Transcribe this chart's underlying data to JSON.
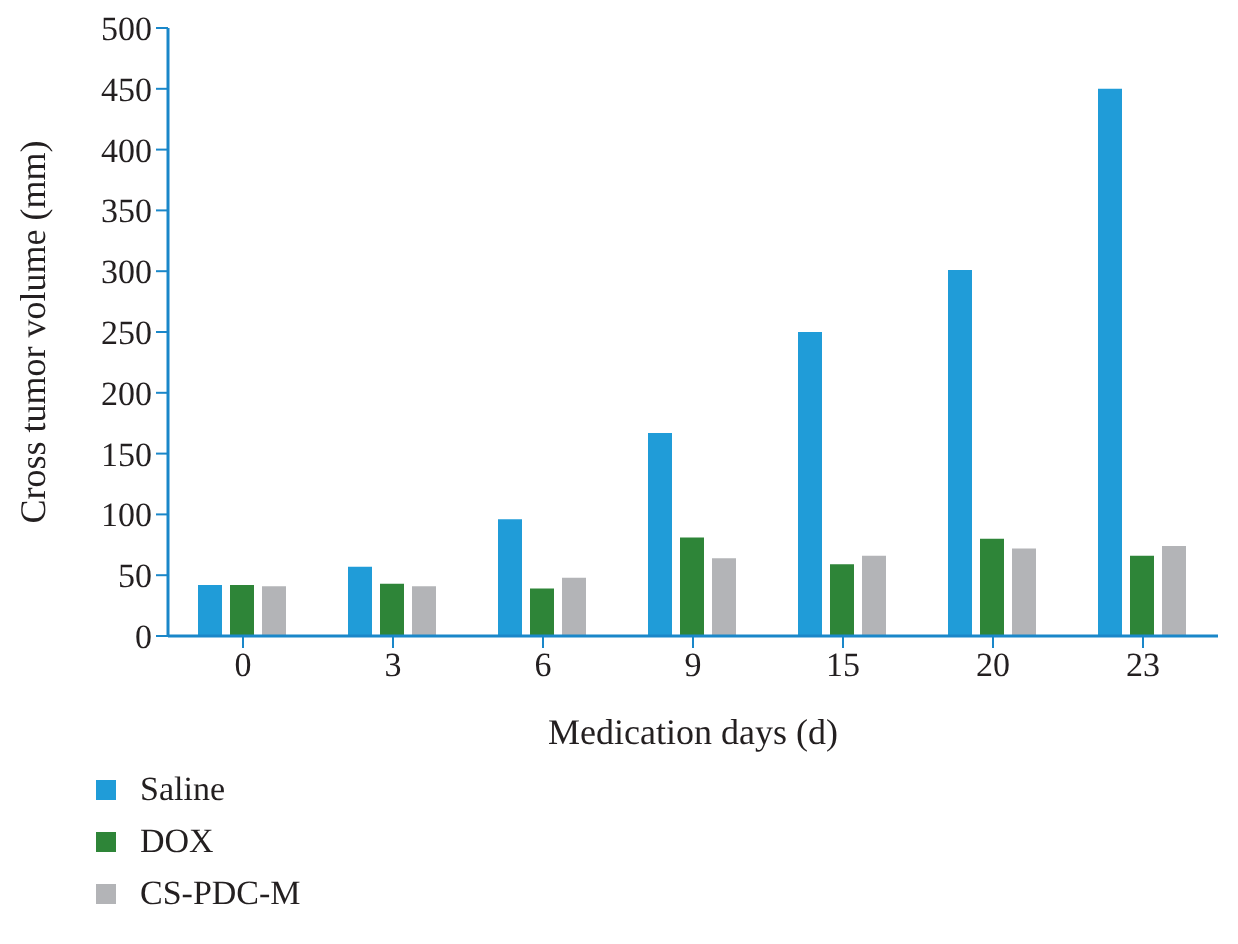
{
  "chart_data": {
    "type": "bar",
    "xlabel": "Medication days (d)",
    "ylabel": "Cross tumor volume (mm)",
    "categories": [
      "0",
      "3",
      "6",
      "9",
      "15",
      "20",
      "23"
    ],
    "series": [
      {
        "name": "Saline",
        "color": "#209cd8",
        "values": [
          42,
          57,
          96,
          167,
          250,
          301,
          450
        ]
      },
      {
        "name": "DOX",
        "color": "#2e8538",
        "values": [
          42,
          43,
          39,
          81,
          59,
          80,
          66
        ]
      },
      {
        "name": "CS-PDC-M",
        "color": "#b3b4b7",
        "values": [
          41,
          41,
          48,
          64,
          66,
          72,
          74
        ]
      }
    ],
    "ylim": [
      0,
      500
    ],
    "yticks": [
      0,
      50,
      100,
      150,
      200,
      250,
      300,
      350,
      400,
      450,
      500
    ],
    "grid": false,
    "legend": "bottom left"
  }
}
